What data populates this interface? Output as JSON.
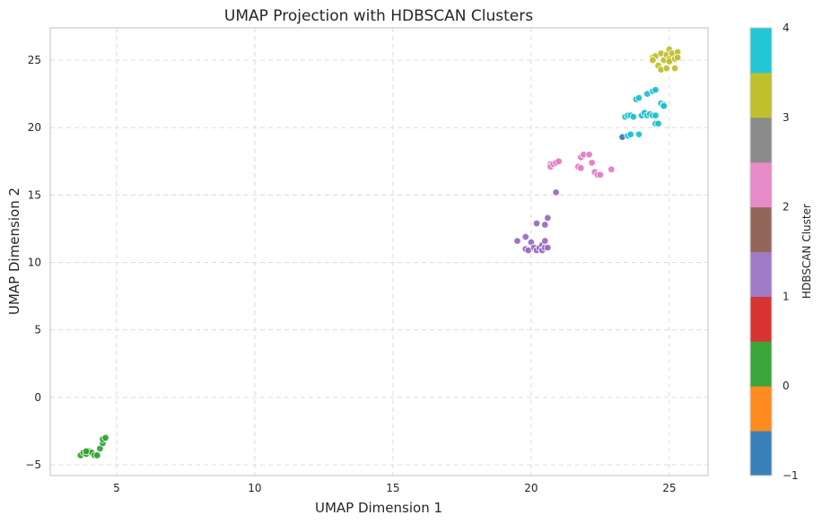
{
  "chart_data": {
    "type": "scatter",
    "title": "UMAP Projection with HDBSCAN Clusters",
    "xlabel": "UMAP Dimension 1",
    "ylabel": "UMAP Dimension 2",
    "xlim": [
      2.6,
      26.4
    ],
    "ylim": [
      -5.8,
      27.4
    ],
    "xticks": [
      5,
      10,
      15,
      20,
      25
    ],
    "yticks": [
      -5,
      0,
      5,
      10,
      15,
      20,
      25
    ],
    "grid": true,
    "colorbar": {
      "label": "HDBSCAN Cluster",
      "range": [
        -1,
        4
      ],
      "ticks": [
        -1,
        0,
        1,
        2,
        3,
        4
      ],
      "segments": [
        "#3a80b9",
        "#ff8a1f",
        "#3aa63a",
        "#d93434",
        "#9f7bc7",
        "#93665a",
        "#e68ac8",
        "#8b8b8b",
        "#c0c02d",
        "#23c6d6"
      ]
    },
    "series": [
      {
        "cluster": -1,
        "color": "#2f7ab6",
        "points": [
          [
            23.3,
            19.3
          ]
        ]
      },
      {
        "cluster": 0,
        "color": "#2ca02c",
        "points": [
          [
            3.7,
            -4.3
          ],
          [
            3.8,
            -4.1
          ],
          [
            3.9,
            -4.2
          ],
          [
            4.0,
            -4.0
          ],
          [
            4.1,
            -4.1
          ],
          [
            4.2,
            -4.3
          ],
          [
            4.3,
            -4.3
          ],
          [
            4.4,
            -3.8
          ],
          [
            4.5,
            -3.4
          ],
          [
            4.5,
            -3.1
          ],
          [
            4.6,
            -3.0
          ],
          [
            3.9,
            -4.0
          ]
        ]
      },
      {
        "cluster": 1,
        "color": "#9467bd",
        "points": [
          [
            19.5,
            11.6
          ],
          [
            19.8,
            11.0
          ],
          [
            19.8,
            11.9
          ],
          [
            19.9,
            10.9
          ],
          [
            20.0,
            11.5
          ],
          [
            20.1,
            11.1
          ],
          [
            20.2,
            10.9
          ],
          [
            20.3,
            11.1
          ],
          [
            20.4,
            11.3
          ],
          [
            20.4,
            10.9
          ],
          [
            20.5,
            11.6
          ],
          [
            20.5,
            11.1
          ],
          [
            20.6,
            11.1
          ],
          [
            20.2,
            12.9
          ],
          [
            20.5,
            12.8
          ],
          [
            20.6,
            13.3
          ],
          [
            20.9,
            15.2
          ]
        ]
      },
      {
        "cluster": 2,
        "color": "#e377c2",
        "points": [
          [
            20.7,
            17.3
          ],
          [
            20.7,
            17.1
          ],
          [
            20.8,
            17.3
          ],
          [
            20.9,
            17.4
          ],
          [
            21.0,
            17.5
          ],
          [
            21.7,
            17.1
          ],
          [
            21.8,
            17.0
          ],
          [
            21.8,
            17.8
          ],
          [
            21.9,
            18.0
          ],
          [
            22.1,
            18.0
          ],
          [
            22.2,
            17.4
          ],
          [
            22.3,
            16.7
          ],
          [
            22.4,
            16.5
          ],
          [
            22.5,
            16.5
          ],
          [
            22.9,
            16.9
          ]
        ]
      },
      {
        "cluster": 3,
        "color": "#bcbd22",
        "points": [
          [
            24.4,
            25.2
          ],
          [
            24.5,
            25.3
          ],
          [
            24.6,
            24.6
          ],
          [
            24.7,
            24.3
          ],
          [
            24.7,
            25.5
          ],
          [
            24.8,
            25.0
          ],
          [
            24.9,
            25.4
          ],
          [
            24.9,
            24.4
          ],
          [
            25.0,
            25.1
          ],
          [
            25.0,
            25.8
          ],
          [
            25.0,
            24.9
          ],
          [
            25.1,
            25.5
          ],
          [
            25.2,
            25.1
          ],
          [
            25.2,
            24.4
          ],
          [
            25.3,
            25.6
          ],
          [
            24.4,
            25.0
          ],
          [
            25.3,
            25.2
          ]
        ]
      },
      {
        "cluster": 4,
        "color": "#17becf",
        "points": [
          [
            23.4,
            20.8
          ],
          [
            23.5,
            20.9
          ],
          [
            23.5,
            19.4
          ],
          [
            23.6,
            20.9
          ],
          [
            23.6,
            19.5
          ],
          [
            23.7,
            20.8
          ],
          [
            23.8,
            22.1
          ],
          [
            23.9,
            22.2
          ],
          [
            23.9,
            19.5
          ],
          [
            24.0,
            20.9
          ],
          [
            24.1,
            21.1
          ],
          [
            24.2,
            22.5
          ],
          [
            24.2,
            20.9
          ],
          [
            24.3,
            21.0
          ],
          [
            24.4,
            20.9
          ],
          [
            24.4,
            22.7
          ],
          [
            24.5,
            20.3
          ],
          [
            24.5,
            22.8
          ],
          [
            24.6,
            20.3
          ],
          [
            24.7,
            21.8
          ],
          [
            24.8,
            21.7
          ],
          [
            24.8,
            21.6
          ],
          [
            24.5,
            20.9
          ]
        ]
      }
    ]
  }
}
